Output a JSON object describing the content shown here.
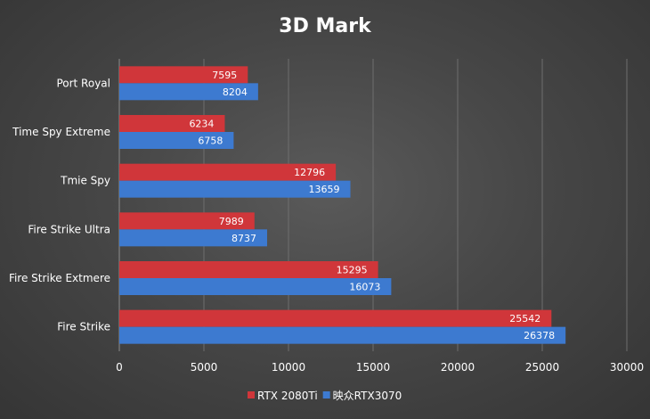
{
  "chart_data": {
    "type": "bar",
    "orientation": "horizontal",
    "title": "3D Mark",
    "categories": [
      "Port Royal",
      "Time Spy Extreme",
      "Tmie Spy",
      "Fire Strike Ultra",
      "Fire Strike Extmere",
      "Fire Strike"
    ],
    "series": [
      {
        "name": "RTX 2080Ti",
        "color": "#d0363a",
        "values": [
          7595,
          6234,
          12796,
          7989,
          15295,
          25542
        ]
      },
      {
        "name": "映众RTX3070",
        "color": "#3d7ad0",
        "values": [
          8204,
          6758,
          13659,
          8737,
          16073,
          26378
        ]
      }
    ],
    "xlim": [
      0,
      30000
    ],
    "xticks": [
      0,
      5000,
      10000,
      15000,
      20000,
      25000,
      30000
    ],
    "grid": "vertical",
    "legend_position": "bottom",
    "data_labels": true
  }
}
